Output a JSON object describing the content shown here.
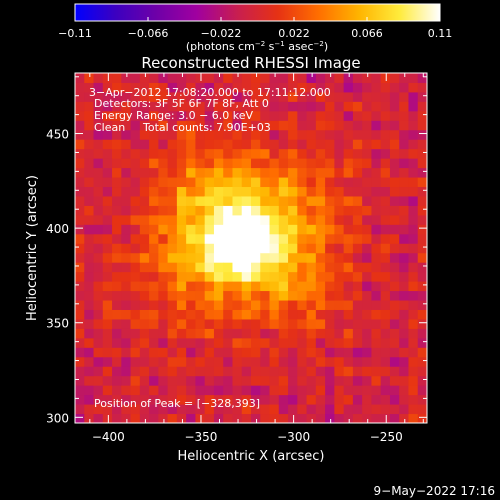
{
  "colorbar": {
    "ticks": [
      -0.11,
      -0.066,
      -0.022,
      0.022,
      0.066,
      0.11
    ],
    "tick_labels": [
      "−0.11",
      "−0.066",
      "−0.022",
      "0.022",
      "0.066",
      "0.11"
    ],
    "range": [
      -0.11,
      0.11
    ],
    "unit_label": {
      "base": "(photons cm",
      "exp1": "−2",
      "mid1": " s",
      "exp2": "−1",
      "mid2": " asec",
      "exp3": "−2",
      "end": ")"
    },
    "colormap": [
      "#0000ff",
      "#3c00c0",
      "#6e00a8",
      "#a000a0",
      "#c81e50",
      "#e63214",
      "#ff6e00",
      "#ffb400",
      "#ffeb3c",
      "#ffffff"
    ]
  },
  "chart_data": {
    "type": "heatmap",
    "title": "Reconstructed RHESSI Image",
    "xlabel": "Heliocentric X (arcsec)",
    "ylabel": "Heliocentric Y (arcsec)",
    "xlim": [
      -418,
      -228
    ],
    "ylim": [
      297,
      482
    ],
    "xticks": [
      -400,
      -350,
      -300,
      -250
    ],
    "xtick_labels": [
      "−400",
      "−350",
      "−300",
      "−250"
    ],
    "yticks": [
      300,
      350,
      400,
      450
    ],
    "ytick_labels": [
      "300",
      "350",
      "400",
      "450"
    ],
    "peak": [
      -328,
      393
    ],
    "value_range": [
      -0.11,
      0.11
    ],
    "info_lines": [
      "3−Apr−2012 17:08:20.000 to 17:11:12.000",
      "Detectors: 3F 5F 6F 7F 8F, Att 0",
      "Energy Range: 3.0 − 6.0 keV"
    ],
    "clean_label": "Clean",
    "total_counts": "Total counts: 7.90E+03",
    "peak_text": "Position of Peak = [−328,393]"
  },
  "footer": {
    "timestamp": "9−May−2022 17:16"
  }
}
